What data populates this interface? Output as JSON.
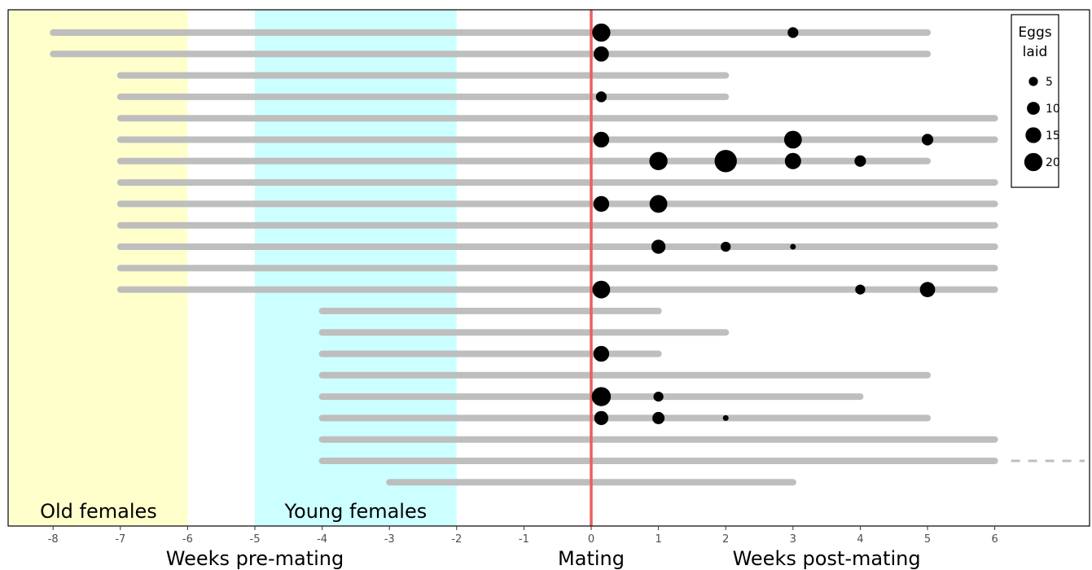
{
  "chart_data": {
    "type": "scatter",
    "subtype": "timeline-with-sized-points",
    "title": "",
    "xlim": [
      -8.65,
      7.3
    ],
    "xticks": [
      -8,
      -7,
      -6,
      -5,
      -4,
      -3,
      -2,
      -1,
      0,
      1,
      2,
      3,
      4,
      5,
      6
    ],
    "xlabels": [
      {
        "text": "Weeks pre-mating",
        "x": -5
      },
      {
        "text": "Mating",
        "x": 0
      },
      {
        "text": "Weeks post-mating",
        "x": 3.5
      }
    ],
    "regions": [
      {
        "label": "Old females",
        "x_start": -8.65,
        "x_end": -6,
        "color": "#ffffcc"
      },
      {
        "label": "Young females",
        "x_start": -5,
        "x_end": -2,
        "color": "#ccffff"
      }
    ],
    "mating_line": {
      "x": 0,
      "color": "#e8615f"
    },
    "line_color": "#bebebe",
    "point_color": "#000000",
    "legend": {
      "title_lines": [
        "Eggs",
        "laid"
      ],
      "placement": "top-right",
      "entries": [
        5,
        10,
        15,
        20
      ]
    },
    "females": [
      {
        "start": -8,
        "end": 5,
        "eggs": [
          {
            "week": 0.15,
            "n": 20
          },
          {
            "week": 3,
            "n": 7
          }
        ]
      },
      {
        "start": -8,
        "end": 5,
        "eggs": [
          {
            "week": 0.15,
            "n": 14
          }
        ]
      },
      {
        "start": -7,
        "end": 2,
        "eggs": []
      },
      {
        "start": -7,
        "end": 2,
        "eggs": [
          {
            "week": 0.15,
            "n": 7
          }
        ]
      },
      {
        "start": -7,
        "end": 6,
        "eggs": []
      },
      {
        "start": -7,
        "end": 6,
        "eggs": [
          {
            "week": 0.15,
            "n": 15
          },
          {
            "week": 3,
            "n": 19
          },
          {
            "week": 5,
            "n": 8
          }
        ]
      },
      {
        "start": -7,
        "end": 5,
        "eggs": [
          {
            "week": 1,
            "n": 20
          },
          {
            "week": 2,
            "n": 30
          },
          {
            "week": 3,
            "n": 16
          },
          {
            "week": 4,
            "n": 8
          }
        ]
      },
      {
        "start": -7,
        "end": 6,
        "eggs": []
      },
      {
        "start": -7,
        "end": 6,
        "eggs": [
          {
            "week": 0.15,
            "n": 15
          },
          {
            "week": 1,
            "n": 19
          }
        ]
      },
      {
        "start": -7,
        "end": 6,
        "eggs": []
      },
      {
        "start": -7,
        "end": 6,
        "eggs": [
          {
            "week": 1,
            "n": 12
          },
          {
            "week": 2,
            "n": 6
          },
          {
            "week": 3,
            "n": 2
          }
        ]
      },
      {
        "start": -7,
        "end": 6,
        "eggs": []
      },
      {
        "start": -7,
        "end": 6,
        "eggs": [
          {
            "week": 0.15,
            "n": 19
          },
          {
            "week": 4,
            "n": 6
          },
          {
            "week": 5,
            "n": 14
          }
        ]
      },
      {
        "start": -4,
        "end": 1,
        "eggs": []
      },
      {
        "start": -4,
        "end": 2,
        "eggs": []
      },
      {
        "start": -4,
        "end": 1,
        "eggs": [
          {
            "week": 0.15,
            "n": 15
          }
        ]
      },
      {
        "start": -4,
        "end": 5,
        "eggs": []
      },
      {
        "start": -4,
        "end": 4,
        "eggs": [
          {
            "week": 0.15,
            "n": 22
          },
          {
            "week": 1,
            "n": 6
          }
        ]
      },
      {
        "start": -4,
        "end": 5,
        "eggs": [
          {
            "week": 0.15,
            "n": 12
          },
          {
            "week": 1,
            "n": 9
          },
          {
            "week": 2,
            "n": 2
          }
        ]
      },
      {
        "start": -4,
        "end": 6,
        "eggs": []
      },
      {
        "start": -4,
        "end": 6,
        "eggs": [],
        "continues_beyond_axis": true
      },
      {
        "start": -3,
        "end": 3,
        "eggs": []
      }
    ]
  }
}
